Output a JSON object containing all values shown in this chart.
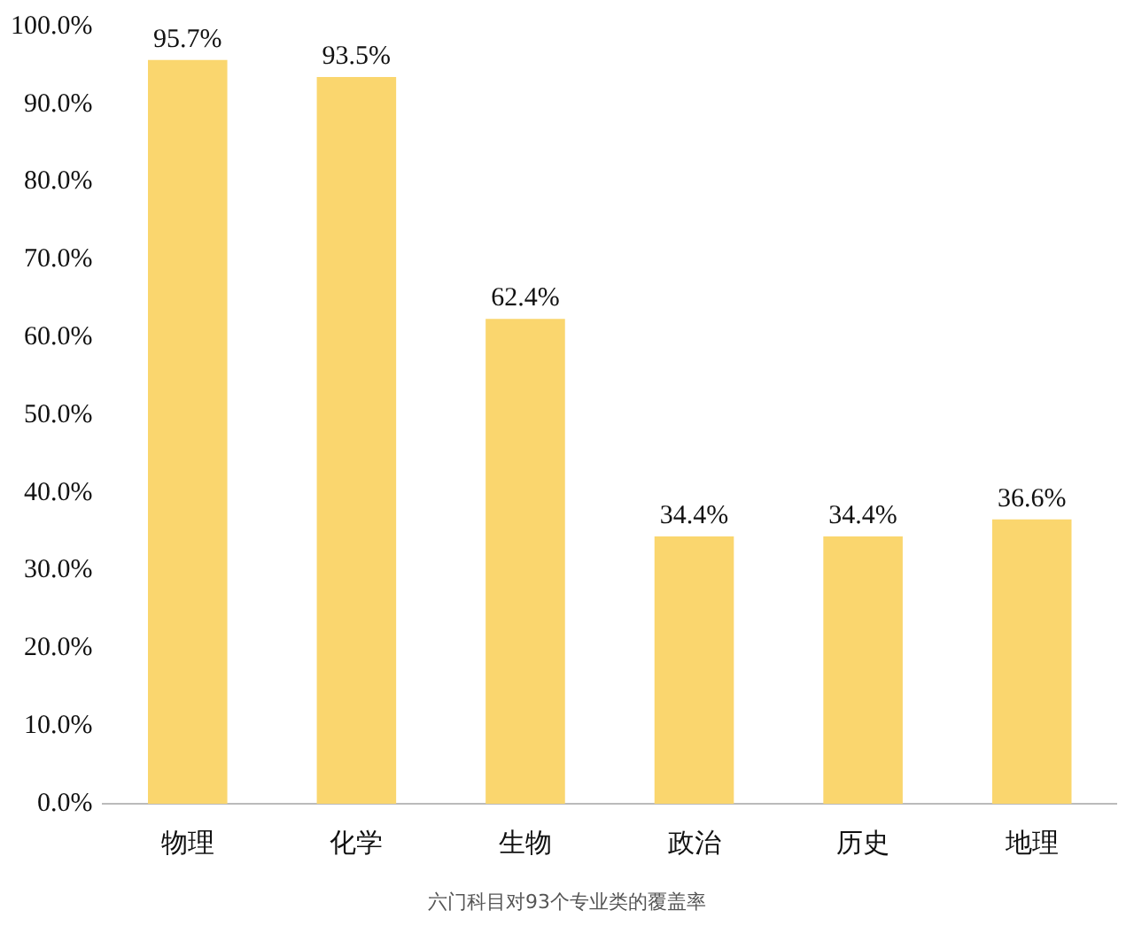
{
  "chart_data": {
    "type": "bar",
    "categories": [
      "物理",
      "化学",
      "生物",
      "政治",
      "历史",
      "地理"
    ],
    "values": [
      95.7,
      93.5,
      62.4,
      34.4,
      34.4,
      36.6
    ],
    "value_labels": [
      "95.7%",
      "93.5%",
      "62.4%",
      "34.4%",
      "34.4%",
      "36.6%"
    ],
    "color": "#fad66e",
    "ylim": [
      0,
      100
    ],
    "yticks": [
      {
        "value": 0,
        "label": "0.0%"
      },
      {
        "value": 10,
        "label": "10.0%"
      },
      {
        "value": 20,
        "label": "20.0%"
      },
      {
        "value": 30,
        "label": "30.0%"
      },
      {
        "value": 40,
        "label": "40.0%"
      },
      {
        "value": 50,
        "label": "50.0%"
      },
      {
        "value": 60,
        "label": "60.0%"
      },
      {
        "value": 70,
        "label": "70.0%"
      },
      {
        "value": 80,
        "label": "80.0%"
      },
      {
        "value": 90,
        "label": "90.0%"
      },
      {
        "value": 100,
        "label": "100.0%"
      }
    ],
    "grid": false,
    "legend": false,
    "annotations": [
      "六门科目对93个专业类的覆盖率"
    ]
  }
}
